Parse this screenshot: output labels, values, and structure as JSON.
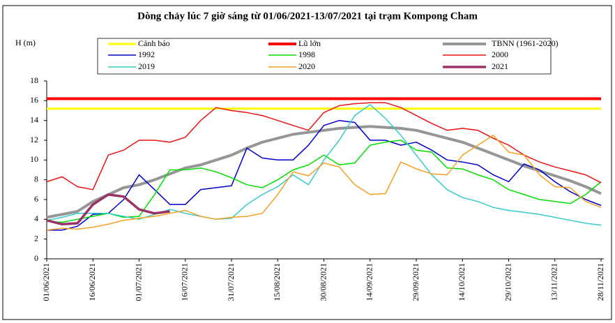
{
  "chart_data": {
    "type": "line",
    "title": "Dòng chảy lúc 7 giờ sáng từ 01/06/2021-13/07/2021 tại trạm Kompong Cham",
    "y_label": "H (m)",
    "categories": [
      "01/06/2021",
      null,
      null,
      "16/06/2021",
      null,
      null,
      "01/07/2021",
      null,
      null,
      "16/07/2021",
      null,
      null,
      "31/07/2021",
      null,
      null,
      "15/08/2021",
      null,
      null,
      "30/08/2021",
      null,
      null,
      "14/09/2021",
      null,
      null,
      "29/09/2021",
      null,
      null,
      "14/10/2021",
      null,
      null,
      "29/10/2021",
      null,
      null,
      "13/11/2021",
      null,
      null,
      "28/11/2021"
    ],
    "ylim": [
      0,
      18
    ],
    "yticks": [
      0,
      2,
      4,
      6,
      8,
      10,
      12,
      14,
      16,
      18
    ],
    "grid": false,
    "series": [
      {
        "name": "Cảnh báo",
        "color": "#ffff00",
        "values": [
          15.2,
          15.2,
          15.2,
          15.2,
          15.2,
          15.2,
          15.2,
          15.2,
          15.2,
          15.2,
          15.2,
          15.2,
          15.2,
          15.2,
          15.2,
          15.2,
          15.2,
          15.2,
          15.2,
          15.2,
          15.2,
          15.2,
          15.2,
          15.2,
          15.2,
          15.2,
          15.2,
          15.2,
          15.2,
          15.2,
          15.2,
          15.2,
          15.2,
          15.2,
          15.2,
          15.2,
          15.2
        ]
      },
      {
        "name": "Lũ lớn",
        "color": "#ff0000",
        "values": [
          16.2,
          16.2,
          16.2,
          16.2,
          16.2,
          16.2,
          16.2,
          16.2,
          16.2,
          16.2,
          16.2,
          16.2,
          16.2,
          16.2,
          16.2,
          16.2,
          16.2,
          16.2,
          16.2,
          16.2,
          16.2,
          16.2,
          16.2,
          16.2,
          16.2,
          16.2,
          16.2,
          16.2,
          16.2,
          16.2,
          16.2,
          16.2,
          16.2,
          16.2,
          16.2,
          16.2,
          16.2
        ]
      },
      {
        "name": "TBNN (1961-2020)",
        "color": "#969696",
        "values": [
          4.2,
          4.5,
          4.8,
          5.8,
          6.5,
          7.2,
          7.5,
          8,
          8.6,
          9.2,
          9.5,
          10,
          10.5,
          11.2,
          11.8,
          12.2,
          12.6,
          12.8,
          13,
          13.2,
          13.3,
          13.4,
          13.3,
          13.2,
          13,
          12.6,
          12.2,
          11.8,
          11.2,
          10.6,
          10,
          9.4,
          8.9,
          8.4,
          7.9,
          7.3,
          6.6
        ]
      },
      {
        "name": "1992",
        "color": "#0000cc",
        "values": [
          2.9,
          2.9,
          3.3,
          4.5,
          4.6,
          6,
          8.5,
          7,
          5.5,
          5.5,
          7,
          7.2,
          7.4,
          11.2,
          10.2,
          10,
          10,
          11.5,
          13.5,
          14,
          13.8,
          12,
          12,
          11.5,
          11.8,
          11,
          10,
          9.8,
          9.5,
          8.5,
          7.8,
          9.6,
          9,
          7.8,
          6.8,
          6,
          5.4
        ]
      },
      {
        "name": "1998",
        "color": "#00e000",
        "values": [
          3.8,
          3.7,
          4,
          4.3,
          4.6,
          4.2,
          4.3,
          6.5,
          9,
          9,
          9.2,
          8.8,
          8.2,
          7.5,
          7.2,
          8,
          9,
          9.5,
          10.5,
          9.5,
          9.7,
          11.5,
          11.8,
          12,
          11,
          10.8,
          9.2,
          9.1,
          8.5,
          8,
          7,
          6.5,
          6,
          5.8,
          5.6,
          6.5,
          7.8
        ]
      },
      {
        "name": "2000",
        "color": "#ee1111",
        "values": [
          7.8,
          8.3,
          7.3,
          7,
          10.5,
          11,
          12,
          12,
          11.8,
          12.3,
          14,
          15.3,
          15,
          14.8,
          14.5,
          14,
          13.5,
          13,
          14.8,
          15.5,
          15.7,
          15.8,
          15.8,
          15.3,
          14.5,
          13.7,
          13,
          13.2,
          13,
          12.2,
          11.5,
          10.5,
          9.8,
          9.3,
          8.9,
          8.5,
          7.7
        ]
      },
      {
        "name": "2019",
        "color": "#33cccc",
        "values": [
          3.9,
          4.2,
          4.6,
          4.6,
          4.6,
          4.3,
          4,
          4.5,
          5,
          4.6,
          4.3,
          4,
          4.1,
          5.5,
          6.5,
          7.3,
          8.5,
          7.5,
          10,
          12,
          14.5,
          15.6,
          14.2,
          12.5,
          10.5,
          8.5,
          7,
          6.2,
          5.8,
          5.2,
          4.9,
          4.7,
          4.5,
          4.2,
          3.9,
          3.6,
          3.4
        ]
      },
      {
        "name": "2020",
        "color": "#f5a020",
        "values": [
          2.9,
          3.1,
          3,
          3.2,
          3.5,
          3.9,
          4.1,
          4.3,
          4.6,
          4.9,
          4.3,
          4,
          4.2,
          4.3,
          4.6,
          6.5,
          8.8,
          8.4,
          9.7,
          9.3,
          7.5,
          6.5,
          6.6,
          9.8,
          9.1,
          8.6,
          8.5,
          10.5,
          11.5,
          12.5,
          10.8,
          10.5,
          8.5,
          7.3,
          7.2,
          5.8,
          5.2
        ]
      },
      {
        "name": "2021",
        "color": "#993366",
        "values": [
          3.9,
          3.5,
          3.6,
          5.5,
          6.5,
          6.3,
          5,
          4.6,
          4.8,
          null,
          null,
          null,
          null,
          null,
          null,
          null,
          null,
          null,
          null,
          null,
          null,
          null,
          null,
          null,
          null,
          null,
          null,
          null,
          null,
          null,
          null,
          null,
          null,
          null,
          null,
          null,
          null
        ]
      }
    ]
  }
}
